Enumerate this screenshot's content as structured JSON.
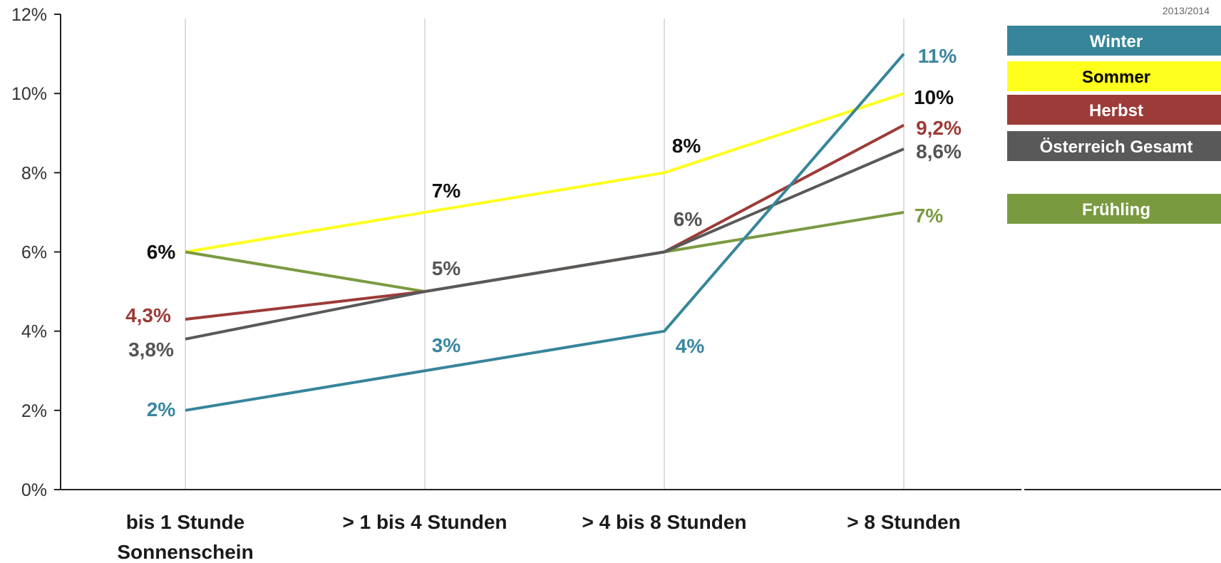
{
  "year_label": "2013/2014",
  "chart_data": {
    "type": "line",
    "categories": [
      "bis 1 Stunde\nSonnenschein",
      "> 1 bis 4 Stunden",
      "> 4 bis 8 Stunden",
      "> 8 Stunden"
    ],
    "ylim": [
      0,
      12
    ],
    "yticks": [
      "0%",
      "2%",
      "4%",
      "6%",
      "8%",
      "10%",
      "12%"
    ],
    "grid": "vertical at categories",
    "legend_position": "top-right",
    "series": [
      {
        "name": "Winter",
        "color": "#37859a",
        "text_color": "#ffffff",
        "values": [
          2,
          3,
          4,
          11
        ],
        "labels": [
          "2%",
          "3%",
          "4%",
          "11%"
        ]
      },
      {
        "name": "Sommer",
        "color": "#ffff1e",
        "text_color": "#000000",
        "values": [
          6,
          7,
          8,
          10
        ],
        "labels": [
          "6%",
          "7%",
          "8%",
          "10%"
        ]
      },
      {
        "name": "Herbst",
        "color": "#9c3b38",
        "text_color": "#ffffff",
        "values": [
          4.3,
          5,
          6,
          9.2
        ],
        "labels": [
          "4,3%",
          "",
          "",
          "9,2%"
        ]
      },
      {
        "name": "Österreich Gesamt",
        "color": "#595959",
        "text_color": "#ffffff",
        "values": [
          3.8,
          5,
          6,
          8.6
        ],
        "labels": [
          "3,8%",
          "5%",
          "6%",
          "8,6%"
        ]
      },
      {
        "name": "Frühling",
        "color": "#7a9a40",
        "text_color": "#ffffff",
        "values": [
          6,
          5,
          6,
          7
        ],
        "labels": [
          "",
          "",
          "",
          "7%"
        ]
      }
    ]
  }
}
